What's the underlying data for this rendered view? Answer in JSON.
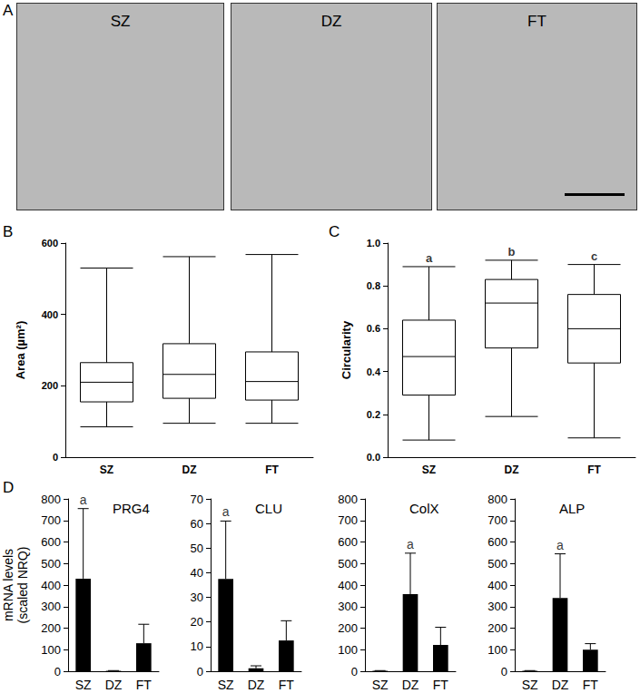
{
  "images": {
    "panel": "A",
    "labels": [
      "SZ",
      "DZ",
      "FT"
    ]
  },
  "chart_data": [
    {
      "type": "boxplot",
      "panel": "B",
      "ylabel": "Area (µm²)",
      "categories": [
        "SZ",
        "DZ",
        "FT"
      ],
      "values": [
        [
          85,
          155,
          210,
          265,
          530
        ],
        [
          95,
          165,
          232,
          318,
          562
        ],
        [
          95,
          160,
          212,
          295,
          568
        ]
      ],
      "ylim": [
        0,
        600
      ],
      "yticks": [
        0,
        200,
        400,
        600
      ],
      "grid": false
    },
    {
      "type": "boxplot",
      "panel": "C",
      "ylabel": "Circularity",
      "categories": [
        "SZ",
        "DZ",
        "FT"
      ],
      "values": [
        [
          0.08,
          0.29,
          0.47,
          0.64,
          0.89
        ],
        [
          0.19,
          0.51,
          0.72,
          0.83,
          0.92
        ],
        [
          0.09,
          0.44,
          0.6,
          0.76,
          0.9
        ]
      ],
      "annotations": [
        "a",
        "b",
        "c"
      ],
      "ylim": [
        0,
        1
      ],
      "yticks": [
        {
          "value": 0,
          "label": "0.0"
        },
        0.2,
        0.4,
        0.6,
        0.8,
        {
          "value": 1,
          "label": "1.0"
        }
      ],
      "grid": false
    },
    {
      "type": "bar",
      "panel": "D",
      "title": "PRG4",
      "ylabel": "mRNA levels\n(scaled NRQ)",
      "categories": [
        "SZ",
        "DZ",
        "FT"
      ],
      "values": [
        430,
        2,
        130
      ],
      "errors": [
        325,
        1,
        88
      ],
      "annotations": [
        "a",
        null,
        null
      ],
      "color": "#000000",
      "ylim": [
        0,
        800
      ],
      "yticks": [
        0,
        100,
        200,
        300,
        400,
        500,
        600,
        700,
        800
      ],
      "grid": false
    },
    {
      "type": "bar",
      "title": "CLU",
      "categories": [
        "SZ",
        "DZ",
        "FT"
      ],
      "values": [
        37.5,
        1.2,
        12.5
      ],
      "errors": [
        23.5,
        1,
        8
      ],
      "annotations": [
        "a",
        null,
        null
      ],
      "color": "#000000",
      "ylim": [
        0,
        70
      ],
      "yticks": [
        0,
        10,
        20,
        30,
        40,
        50,
        60,
        70
      ],
      "grid": false
    },
    {
      "type": "bar",
      "title": "ColX",
      "categories": [
        "SZ",
        "DZ",
        "FT"
      ],
      "values": [
        2,
        358,
        122
      ],
      "errors": [
        1,
        190,
        82
      ],
      "annotations": [
        null,
        "a",
        null
      ],
      "color": "#000000",
      "ylim": [
        0,
        800
      ],
      "yticks": [
        0,
        100,
        200,
        300,
        400,
        500,
        600,
        700,
        800
      ],
      "grid": false
    },
    {
      "type": "bar",
      "title": "ALP",
      "categories": [
        "SZ",
        "DZ",
        "FT"
      ],
      "values": [
        2,
        340,
        100
      ],
      "errors": [
        1,
        205,
        28
      ],
      "annotations": [
        null,
        "a",
        null
      ],
      "color": "#000000",
      "ylim": [
        0,
        800
      ],
      "yticks": [
        0,
        100,
        200,
        300,
        400,
        500,
        600,
        700,
        800
      ],
      "grid": false
    }
  ]
}
